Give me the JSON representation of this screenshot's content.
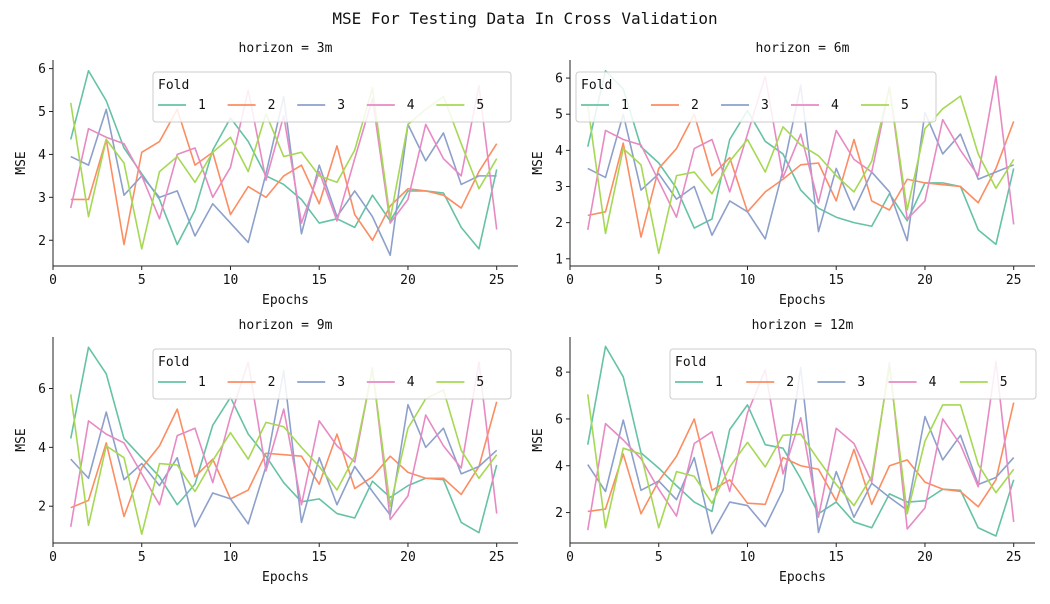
{
  "chart_data": {
    "title": "MSE For Testing Data In Cross Validation",
    "type": "line",
    "legend_title": "Fold",
    "colors": [
      "#66c2a5",
      "#fc8d62",
      "#8da0cb",
      "#e78ac3",
      "#a6d854"
    ],
    "x": [
      1,
      2,
      3,
      4,
      5,
      6,
      7,
      8,
      9,
      10,
      11,
      12,
      13,
      14,
      15,
      16,
      17,
      18,
      19,
      20,
      21,
      22,
      23,
      24,
      25
    ],
    "subplots": [
      {
        "title": "horizon = 3m",
        "xlabel": "Epochs",
        "ylabel": "MSE",
        "xlim": [
          0,
          26.2
        ],
        "ylim": [
          1.4,
          6.2
        ],
        "xticks": [
          0,
          5,
          10,
          15,
          20,
          25
        ],
        "yticks": [
          2,
          3,
          4,
          5,
          6
        ],
        "legend_position": "top",
        "series": [
          {
            "name": "1",
            "values": [
              4.35,
              5.95,
              5.25,
              4.15,
              3.55,
              2.95,
              1.9,
              2.7,
              4.1,
              4.85,
              4.3,
              3.5,
              3.3,
              2.95,
              2.4,
              2.5,
              2.3,
              3.05,
              2.45,
              3.15,
              3.15,
              3.1,
              2.3,
              1.8,
              3.65
            ]
          },
          {
            "name": "2",
            "values": [
              2.95,
              2.95,
              4.35,
              1.9,
              4.05,
              4.3,
              5.05,
              3.75,
              4.05,
              2.6,
              3.25,
              3.0,
              3.5,
              3.75,
              2.85,
              4.2,
              2.6,
              2.0,
              2.8,
              3.2,
              3.15,
              3.05,
              2.75,
              3.6,
              4.25
            ]
          },
          {
            "name": "3",
            "values": [
              3.95,
              3.75,
              5.05,
              3.05,
              3.5,
              3.0,
              3.15,
              2.1,
              2.85,
              2.4,
              1.95,
              3.55,
              5.35,
              2.15,
              3.75,
              2.55,
              3.15,
              2.55,
              1.65,
              4.7,
              3.85,
              4.5,
              3.3,
              3.5,
              3.5
            ]
          },
          {
            "name": "4",
            "values": [
              2.75,
              4.6,
              4.4,
              4.25,
              3.5,
              2.5,
              4.0,
              4.15,
              3.0,
              3.7,
              5.5,
              3.4,
              4.9,
              2.4,
              3.6,
              2.45,
              3.9,
              5.3,
              2.4,
              2.95,
              4.7,
              3.9,
              3.5,
              5.6,
              2.25
            ]
          },
          {
            "name": "5",
            "values": [
              5.2,
              2.55,
              4.35,
              3.8,
              1.8,
              3.6,
              3.95,
              3.35,
              4.05,
              4.4,
              3.6,
              4.95,
              3.95,
              4.05,
              3.5,
              3.35,
              4.1,
              5.55,
              2.5,
              4.7,
              5.05,
              5.35,
              4.25,
              3.2,
              3.9
            ]
          }
        ]
      },
      {
        "title": "horizon = 6m",
        "xlabel": "Epochs",
        "ylabel": "MSE",
        "xlim": [
          0,
          26.2
        ],
        "ylim": [
          0.8,
          6.5
        ],
        "xticks": [
          0,
          5,
          10,
          15,
          20,
          25
        ],
        "yticks": [
          1,
          2,
          3,
          4,
          5,
          6
        ],
        "legend_position": "top",
        "series": [
          {
            "name": "1",
            "values": [
              4.1,
              6.2,
              5.7,
              4.1,
              3.65,
              2.95,
              1.85,
              2.1,
              4.3,
              5.1,
              4.25,
              3.9,
              2.9,
              2.4,
              2.15,
              2.0,
              1.9,
              2.8,
              2.05,
              3.1,
              3.1,
              3.0,
              1.8,
              1.4,
              3.5
            ]
          },
          {
            "name": "2",
            "values": [
              2.2,
              2.3,
              4.2,
              1.6,
              3.5,
              4.05,
              5.0,
              3.3,
              3.8,
              2.3,
              2.85,
              3.2,
              3.6,
              3.65,
              2.6,
              4.3,
              2.6,
              2.35,
              3.2,
              3.1,
              3.05,
              3.0,
              2.55,
              3.5,
              4.8
            ]
          },
          {
            "name": "3",
            "values": [
              3.5,
              3.25,
              5.0,
              2.9,
              3.35,
              2.65,
              3.0,
              1.65,
              2.6,
              2.3,
              1.55,
              3.45,
              5.8,
              1.75,
              3.5,
              2.35,
              3.4,
              2.85,
              1.5,
              5.05,
              3.9,
              4.45,
              3.2,
              3.4,
              3.6
            ]
          },
          {
            "name": "4",
            "values": [
              1.8,
              4.55,
              4.3,
              4.15,
              3.15,
              2.15,
              4.05,
              4.3,
              2.85,
              4.45,
              6.05,
              3.25,
              4.45,
              2.55,
              4.55,
              3.75,
              3.4,
              5.75,
              2.1,
              2.6,
              4.85,
              4.0,
              3.3,
              6.05,
              1.95
            ]
          },
          {
            "name": "5",
            "values": [
              5.25,
              1.7,
              4.05,
              3.6,
              1.15,
              3.3,
              3.4,
              2.8,
              3.7,
              4.3,
              3.4,
              4.65,
              4.15,
              3.85,
              3.3,
              2.85,
              3.7,
              5.75,
              2.35,
              4.6,
              5.15,
              5.5,
              3.9,
              2.95,
              3.75
            ]
          }
        ]
      },
      {
        "title": "horizon = 9m",
        "xlabel": "Epochs",
        "ylabel": "MSE",
        "xlim": [
          0,
          26.2
        ],
        "ylim": [
          0.75,
          7.75
        ],
        "xticks": [
          0,
          5,
          10,
          15,
          20,
          25
        ],
        "yticks": [
          2,
          4,
          6
        ],
        "legend_position": "top",
        "series": [
          {
            "name": "1",
            "values": [
              4.3,
              7.4,
              6.5,
              4.3,
              3.65,
              3.0,
              2.05,
              2.75,
              4.75,
              5.7,
              4.45,
              3.7,
              2.8,
              2.15,
              2.25,
              1.75,
              1.6,
              2.85,
              2.3,
              2.7,
              2.95,
              2.9,
              1.45,
              1.1,
              3.4
            ]
          },
          {
            "name": "2",
            "values": [
              1.95,
              2.2,
              4.15,
              1.65,
              3.3,
              4.05,
              5.3,
              3.0,
              3.6,
              2.25,
              2.55,
              3.8,
              3.75,
              3.7,
              2.75,
              4.45,
              2.6,
              3.0,
              3.7,
              3.15,
              2.95,
              2.95,
              2.4,
              3.35,
              5.55
            ]
          },
          {
            "name": "3",
            "values": [
              3.6,
              2.95,
              5.2,
              2.9,
              3.45,
              2.7,
              3.65,
              1.3,
              2.45,
              2.25,
              1.4,
              3.35,
              6.6,
              1.45,
              3.65,
              2.05,
              3.35,
              2.5,
              1.7,
              5.45,
              4.0,
              4.65,
              3.1,
              3.35,
              3.9
            ]
          },
          {
            "name": "4",
            "values": [
              1.3,
              4.9,
              4.45,
              4.15,
              3.1,
              2.05,
              4.4,
              4.65,
              2.8,
              5.05,
              6.9,
              3.2,
              5.3,
              2.05,
              4.9,
              4.05,
              3.5,
              6.7,
              1.55,
              2.35,
              5.1,
              4.05,
              3.3,
              6.9,
              1.75
            ]
          },
          {
            "name": "5",
            "values": [
              5.8,
              1.35,
              4.05,
              3.65,
              1.05,
              3.45,
              3.4,
              2.5,
              3.55,
              4.5,
              3.6,
              4.85,
              4.7,
              4.0,
              3.35,
              2.55,
              3.7,
              6.65,
              2.0,
              4.65,
              5.65,
              5.95,
              3.9,
              2.95,
              3.75
            ]
          }
        ]
      },
      {
        "title": "horizon = 12m",
        "xlabel": "Epochs",
        "ylabel": "MSE",
        "xlim": [
          0,
          26.2
        ],
        "ylim": [
          0.7,
          9.5
        ],
        "xticks": [
          0,
          5,
          10,
          15,
          20,
          25
        ],
        "yticks": [
          2,
          4,
          6,
          8
        ],
        "legend_position": "top",
        "series": [
          {
            "name": "1",
            "values": [
              4.9,
              9.1,
              7.8,
              4.55,
              3.9,
              3.15,
              2.45,
              2.05,
              5.55,
              6.6,
              4.9,
              4.75,
              3.45,
              1.95,
              2.45,
              1.6,
              1.35,
              2.8,
              2.45,
              2.5,
              3.0,
              2.95,
              1.35,
              1.0,
              3.4
            ]
          },
          {
            "name": "2",
            "values": [
              2.05,
              2.15,
              4.5,
              1.95,
              3.35,
              4.4,
              6.0,
              2.95,
              3.4,
              2.4,
              2.35,
              4.35,
              4.0,
              3.85,
              2.5,
              4.7,
              2.35,
              4.0,
              4.25,
              3.3,
              3.0,
              2.9,
              2.25,
              3.4,
              6.7
            ]
          },
          {
            "name": "3",
            "values": [
              4.05,
              2.9,
              5.95,
              2.95,
              3.35,
              2.55,
              4.35,
              1.1,
              2.45,
              2.3,
              1.4,
              2.95,
              8.2,
              1.15,
              3.75,
              1.8,
              3.25,
              2.65,
              2.1,
              6.1,
              4.25,
              5.3,
              3.2,
              3.5,
              4.35
            ]
          },
          {
            "name": "4",
            "values": [
              1.25,
              5.8,
              5.1,
              4.3,
              3.0,
              1.85,
              4.95,
              5.45,
              2.9,
              6.25,
              8.1,
              3.65,
              6.05,
              1.8,
              5.6,
              4.95,
              3.3,
              8.4,
              1.3,
              2.2,
              6.0,
              4.9,
              3.1,
              8.45,
              1.6
            ]
          },
          {
            "name": "5",
            "values": [
              7.05,
              1.35,
              4.75,
              4.5,
              1.35,
              3.75,
              3.55,
              2.4,
              3.95,
              5.0,
              3.95,
              5.3,
              5.35,
              4.25,
              3.2,
              2.3,
              3.55,
              8.25,
              1.95,
              5.05,
              6.6,
              6.6,
              4.05,
              2.85,
              3.85
            ]
          }
        ]
      }
    ]
  }
}
